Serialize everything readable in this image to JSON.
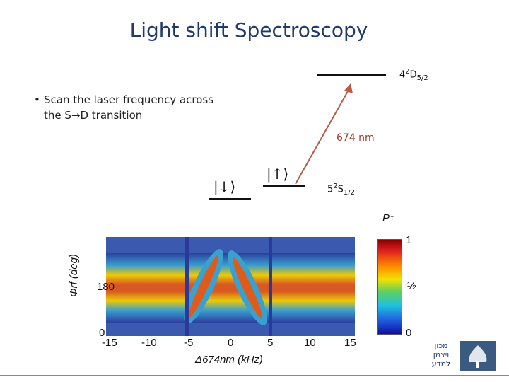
{
  "slide": {
    "title": "Light shift Spectroscopy",
    "bullet_line1": "Scan the laser frequency across",
    "bullet_line2": "the S→D transition",
    "bullet_symbol": "•"
  },
  "diagram": {
    "upper_level": {
      "prefix": "4",
      "sup": "2",
      "main": "D",
      "sub": "5/2"
    },
    "lower_level": {
      "prefix": "5",
      "sup": "2",
      "main": "S",
      "sub": "1/2"
    },
    "wavelength": "674 nm",
    "ket_down": "|↓⟩",
    "ket_up": "|↑⟩",
    "colors": {
      "arrow": "#b85a4a",
      "wavelength": "#a03a2a",
      "title": "#1f3a6d"
    }
  },
  "chart_data": {
    "type": "heatmap",
    "x": [
      -15,
      -10,
      -5,
      0,
      5,
      10,
      15
    ],
    "y_ticks": [
      0,
      180
    ],
    "xlabel": "Δ674nm (kHz)",
    "ylabel": "Φrf (deg)",
    "x_tick_labels": [
      "-15",
      "-10",
      "-5",
      "0",
      "5",
      "10",
      "15"
    ],
    "y_tick_labels": [
      "0",
      "180"
    ],
    "xlim": [
      -15,
      15
    ],
    "ylim": [
      0,
      360
    ],
    "colorbar": {
      "label": "P↑",
      "ticks": [
        "0",
        "½",
        "1"
      ],
      "tick_values": [
        0,
        0.5,
        1
      ]
    }
  },
  "logo": {
    "text_line1": "מכון",
    "text_line2": "ויצמן",
    "text_line3": "למדע"
  }
}
